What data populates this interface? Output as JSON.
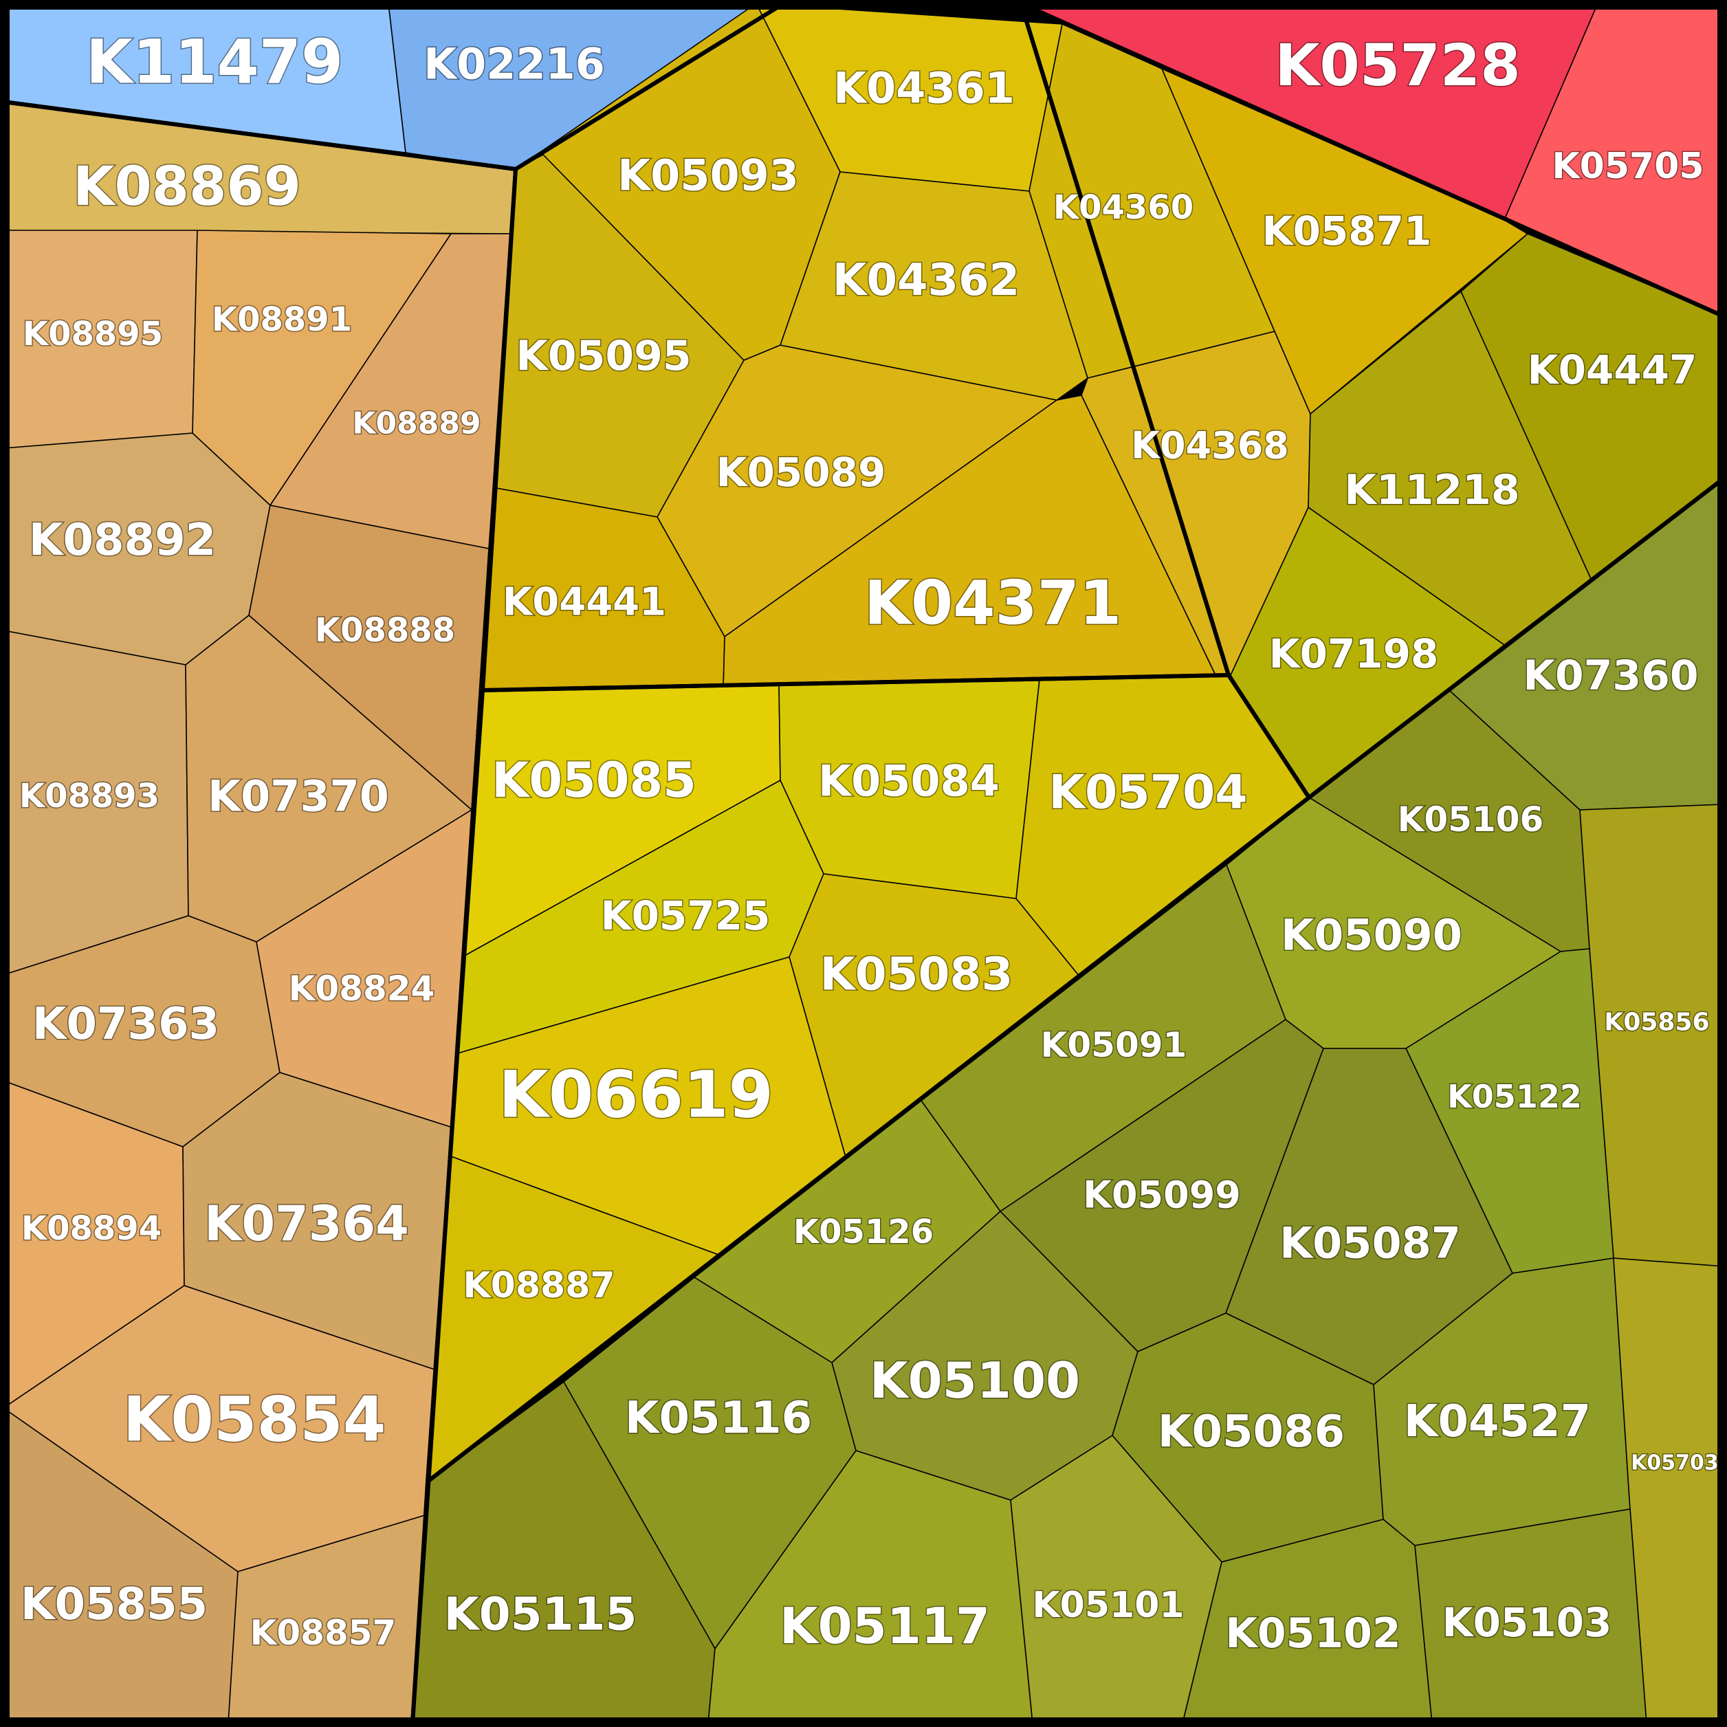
{
  "cells": [
    {
      "id": "K11479",
      "fill": "#92c5fd"
    },
    {
      "id": "K02216",
      "fill": "#7aaff0"
    },
    {
      "id": "K08869",
      "fill": "#dbb95c"
    },
    {
      "id": "K08895",
      "fill": "#e3af6e"
    },
    {
      "id": "K08891",
      "fill": "#e5ad60"
    },
    {
      "id": "K08889",
      "fill": "#e0a868"
    },
    {
      "id": "K08892",
      "fill": "#d4ab6a"
    },
    {
      "id": "K08888",
      "fill": "#d29c5a"
    },
    {
      "id": "K08893",
      "fill": "#d5a96c"
    },
    {
      "id": "K07370",
      "fill": "#d9a764"
    },
    {
      "id": "K07363",
      "fill": "#d6a562"
    },
    {
      "id": "K08824",
      "fill": "#e4a968"
    },
    {
      "id": "K08894",
      "fill": "#e8ac66"
    },
    {
      "id": "K07364",
      "fill": "#d1a564"
    },
    {
      "id": "K05854",
      "fill": "#e3ab68"
    },
    {
      "id": "K05855",
      "fill": "#cda062"
    },
    {
      "id": "K08857",
      "fill": "#d5a866"
    },
    {
      "id": "K04361",
      "fill": "#dfc208"
    },
    {
      "id": "K05093",
      "fill": "#d5b50a"
    },
    {
      "id": "K04360",
      "fill": "#d3b60a"
    },
    {
      "id": "K04362",
      "fill": "#d6b810"
    },
    {
      "id": "K05095",
      "fill": "#cfb410"
    },
    {
      "id": "K05089",
      "fill": "#dcb414"
    },
    {
      "id": "K04368",
      "fill": "#dbb41a"
    },
    {
      "id": "K04371",
      "fill": "#d9b20c"
    },
    {
      "id": "K04441",
      "fill": "#d6b002"
    },
    {
      "id": "K05728",
      "fill": "#f33a56"
    },
    {
      "id": "K05705",
      "fill": "#fd5b60"
    },
    {
      "id": "K05871",
      "fill": "#d9b204"
    },
    {
      "id": "K04447",
      "fill": "#a6a004"
    },
    {
      "id": "K11218",
      "fill": "#b0a70c"
    },
    {
      "id": "K07198",
      "fill": "#b5b205"
    },
    {
      "id": "K07360",
      "fill": "#8b992e"
    },
    {
      "id": "K05085",
      "fill": "#e3cf04"
    },
    {
      "id": "K05084",
      "fill": "#d7c805"
    },
    {
      "id": "K05704",
      "fill": "#d5c004"
    },
    {
      "id": "K05725",
      "fill": "#d3ca04"
    },
    {
      "id": "K05083",
      "fill": "#d4bc06"
    },
    {
      "id": "K06619",
      "fill": "#dfc505"
    },
    {
      "id": "K08887",
      "fill": "#d6be04"
    },
    {
      "id": "K05106",
      "fill": "#8b9220"
    },
    {
      "id": "K05090",
      "fill": "#9ca824"
    },
    {
      "id": "K05856",
      "fill": "#aaa21a"
    },
    {
      "id": "K05091",
      "fill": "#929c24"
    },
    {
      "id": "K05122",
      "fill": "#8c9f26"
    },
    {
      "id": "K05099",
      "fill": "#848f24"
    },
    {
      "id": "K05087",
      "fill": "#858f26"
    },
    {
      "id": "K05126",
      "fill": "#98a324"
    },
    {
      "id": "K05100",
      "fill": "#8f972a"
    },
    {
      "id": "K05116",
      "fill": "#8d9822"
    },
    {
      "id": "K05086",
      "fill": "#8a9622"
    },
    {
      "id": "K04527",
      "fill": "#8f9d26"
    },
    {
      "id": "K05703",
      "fill": "#b0a622"
    },
    {
      "id": "K05115",
      "fill": "#8a8e1c"
    },
    {
      "id": "K05117",
      "fill": "#9da524"
    },
    {
      "id": "K05101",
      "fill": "#a1a62c"
    },
    {
      "id": "K05102",
      "fill": "#8f9a24"
    },
    {
      "id": "K05103",
      "fill": "#8e9624"
    }
  ]
}
